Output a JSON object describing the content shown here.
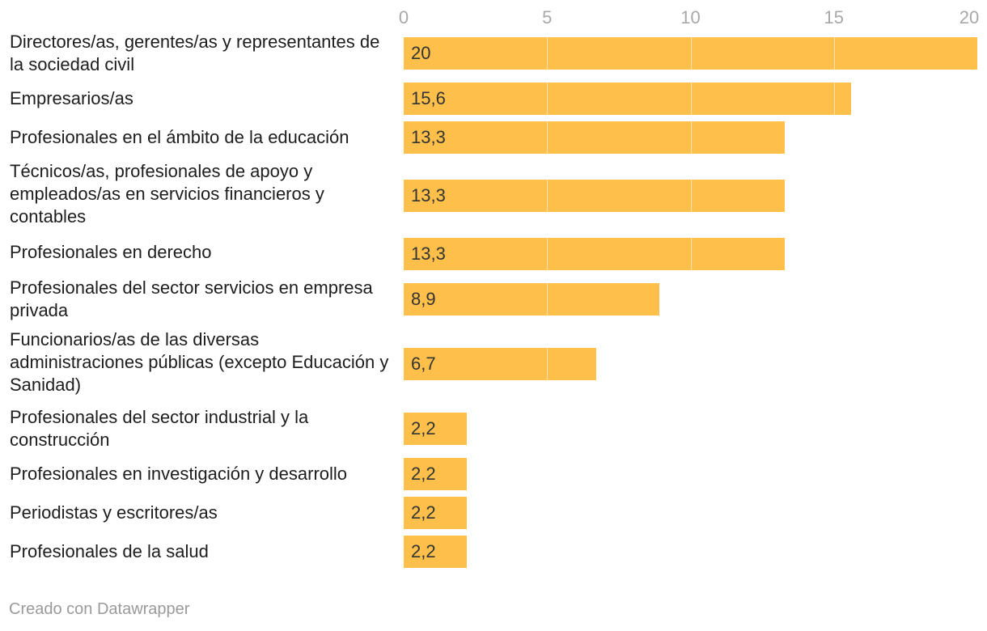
{
  "chart_data": {
    "type": "bar",
    "orientation": "horizontal",
    "categories": [
      "Directores/as, gerentes/as y representantes de la sociedad civil",
      "Empresarios/as",
      "Profesionales en el ámbito de la educación",
      "Técnicos/as, profesionales de apoyo y empleados/as en servicios financieros y contables",
      "Profesionales en derecho",
      "Profesionales del sector servicios en empresa privada",
      "Funcionarios/as de las diversas administraciones públicas (excepto Educación y Sanidad)",
      "Profesionales del sector industrial y la construcción",
      "Profesionales en investigación y desarrollo",
      "Periodistas y escritores/as",
      "Profesionales de la salud"
    ],
    "values": [
      20,
      15.6,
      13.3,
      13.3,
      13.3,
      8.9,
      6.7,
      2.2,
      2.2,
      2.2,
      2.2
    ],
    "value_labels": [
      "20",
      "15,6",
      "13,3",
      "13,3",
      "13,3",
      "8,9",
      "6,7",
      "2,2",
      "2,2",
      "2,2",
      "2,2"
    ],
    "x_ticks": [
      0,
      5,
      10,
      15,
      20
    ],
    "x_tick_labels": [
      "0",
      "5",
      "10",
      "15",
      "20"
    ],
    "xlim": [
      0,
      20
    ],
    "axis_position": "top",
    "grid": true,
    "title": "",
    "xlabel": "",
    "ylabel": "",
    "bar_color": "#ffc04b"
  },
  "footer": {
    "credit": "Creado con Datawrapper"
  }
}
